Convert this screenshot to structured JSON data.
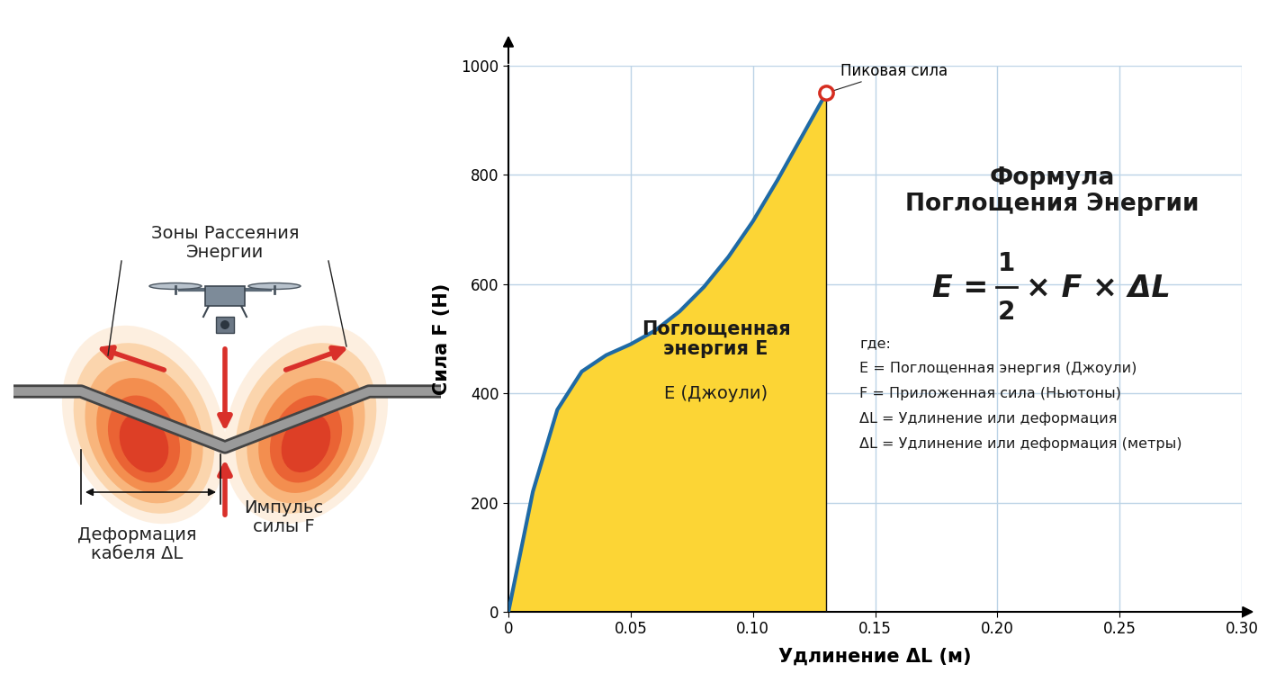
{
  "chart_data": {
    "type": "area",
    "x": [
      0,
      0.01,
      0.02,
      0.03,
      0.04,
      0.05,
      0.06,
      0.07,
      0.08,
      0.09,
      0.1,
      0.11,
      0.12,
      0.13
    ],
    "values": [
      0,
      220,
      370,
      440,
      470,
      490,
      515,
      550,
      595,
      650,
      715,
      790,
      870,
      950
    ],
    "color": "#fcd535",
    "xlabel": "Удлинение ΔL (м)",
    "ylabel": "Сила F (Н)",
    "xlim": [
      0,
      0.3
    ],
    "ylim": [
      0,
      1000
    ],
    "xticks": [
      0,
      0.05,
      {
        "value": 0.1,
        "label": "0.10"
      },
      0.15,
      {
        "value": 0.2,
        "label": "0.20"
      },
      0.25,
      {
        "value": 0.3,
        "label": "0.30"
      }
    ],
    "yticks": [
      0,
      200,
      400,
      600,
      800,
      1000
    ],
    "grid": true,
    "annotations": {
      "peak": "Пиковая сила",
      "area_label": "Поглощенная\nэнергия E",
      "area_unit": "E (Джоули)",
      "formula_title": "Формула\nПоглощения Энергии",
      "formula": {
        "lhs": "E =",
        "numerator": "1",
        "denominator": "2",
        "rhs": "× F × ΔL"
      },
      "legend_lines": [
        "где:",
        "E = Поглощенная энергия (Джоули)",
        "F = Приложенная сила (Ньютоны)",
        "ΔL = Удлинение или деформация",
        "ΔL = Удлинение или деформация (метры)"
      ]
    }
  },
  "diagram": {
    "zones_label": "Зоны Рассеяния\nЭнергии",
    "deformation_label": "Деформация\nкабеля ΔL",
    "force_label": "Импульс\nсилы F"
  }
}
